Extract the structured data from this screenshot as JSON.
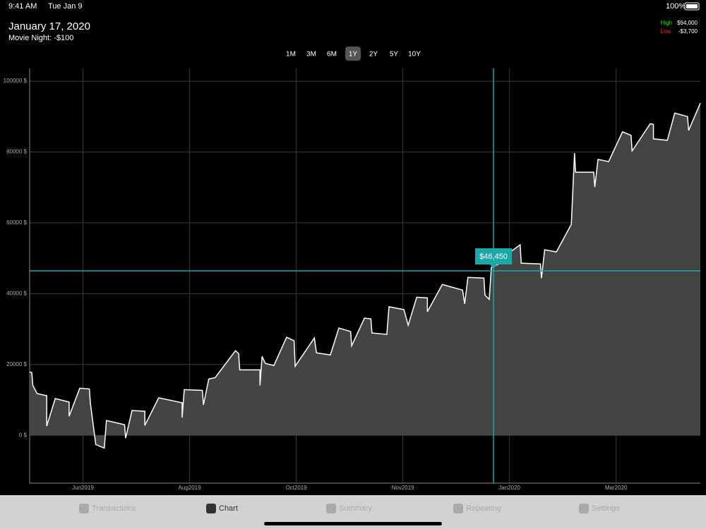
{
  "status_bar": {
    "time": "9:41 AM",
    "date": "Tue Jan 9",
    "battery": "100%"
  },
  "header": {
    "title": "January 17, 2020",
    "subtitle": "Movie Night: -$100",
    "high_label": "High",
    "high_value": "$94,000",
    "low_label": "Low",
    "low_value": "-$3,700"
  },
  "ranges": {
    "items": [
      "1M",
      "3M",
      "6M",
      "1Y",
      "2Y",
      "5Y",
      "10Y"
    ],
    "selected": "1Y"
  },
  "tabs": {
    "items": [
      "Transactions",
      "Chart",
      "Summary",
      "Repeating",
      "Settings"
    ],
    "selected": "Chart"
  },
  "chart_data": {
    "type": "area",
    "color": "#ffffff",
    "fill": "#444444",
    "grid": true,
    "x": [
      -0.5,
      -0.48,
      -0.47,
      -0.43,
      -0.34,
      -0.34,
      -0.26,
      -0.13,
      -0.13,
      -0.03,
      0.06,
      0.07,
      0.12,
      0.2,
      0.22,
      0.39,
      0.4,
      0.46,
      0.58,
      0.58,
      0.71,
      0.93,
      0.93,
      0.95,
      1.12,
      1.13,
      1.18,
      1.24,
      1.43,
      1.46,
      1.47,
      1.66,
      1.66,
      1.68,
      1.71,
      1.79,
      1.91,
      1.98,
      1.99,
      2.17,
      2.19,
      2.32,
      2.4,
      2.51,
      2.52,
      2.64,
      2.7,
      2.71,
      2.85,
      2.87,
      3.01,
      3.05,
      3.13,
      3.23,
      3.23,
      3.37,
      3.56,
      3.58,
      3.61,
      3.76,
      3.77,
      3.81,
      3.83,
      3.93,
      4.0,
      4.1,
      4.11,
      4.29,
      4.3,
      4.33,
      4.44,
      4.58,
      4.61,
      4.62,
      4.79,
      4.8,
      4.83,
      4.93,
      5.06,
      5.14,
      5.15,
      5.32,
      5.35,
      5.35,
      5.48,
      5.55,
      5.67,
      5.68,
      5.79
    ],
    "values": [
      17900,
      17700,
      14100,
      11800,
      11200,
      2600,
      10400,
      9400,
      5400,
      13300,
      13100,
      9000,
      -2600,
      -3600,
      4200,
      3000,
      -800,
      7000,
      6800,
      2800,
      10600,
      9200,
      5000,
      12900,
      12700,
      8600,
      15900,
      16300,
      23900,
      23100,
      18500,
      18500,
      14100,
      22300,
      20300,
      19700,
      27700,
      26700,
      19500,
      27500,
      23300,
      22700,
      30300,
      29300,
      25300,
      33100,
      32900,
      28900,
      28500,
      36300,
      35500,
      31100,
      39000,
      38800,
      34900,
      42600,
      41000,
      37100,
      44600,
      44400,
      39600,
      38400,
      47400,
      48800,
      51600,
      53800,
      48600,
      48400,
      44400,
      52400,
      51800,
      59600,
      79700,
      74300,
      74300,
      70100,
      77900,
      77300,
      85700,
      84700,
      80300,
      88000,
      87800,
      83700,
      83300,
      91000,
      90000,
      86100,
      93800
    ],
    "xlim": [
      -0.5,
      5.79
    ],
    "xticks": [
      {
        "value": 0,
        "label": "Jun2019"
      },
      {
        "value": 1,
        "label": "Aug2019"
      },
      {
        "value": 2,
        "label": "Oct2019"
      },
      {
        "value": 3,
        "label": "Nov2019"
      },
      {
        "value": 4,
        "label": "Jan2020"
      },
      {
        "value": 5,
        "label": "Mar2020"
      }
    ],
    "ylim": [
      -13500,
      103600
    ],
    "yticks": [
      {
        "value": 0,
        "label": "0 $"
      },
      {
        "value": 20000,
        "label": "20000 $"
      },
      {
        "value": 40000,
        "label": "40000 $"
      },
      {
        "value": 60000,
        "label": "60000 $"
      },
      {
        "value": 80000,
        "label": "80000 $"
      },
      {
        "value": 100000,
        "label": "100000 $"
      }
    ],
    "cursor": {
      "x": 3.85,
      "value": 46450,
      "label": "$46,450",
      "color": "#1aa8a8"
    }
  }
}
